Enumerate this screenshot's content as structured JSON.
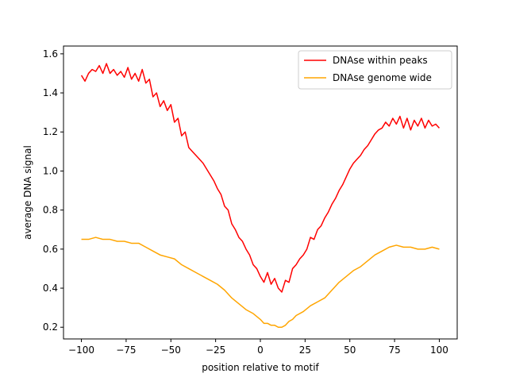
{
  "chart_data": {
    "type": "line",
    "title": "",
    "xlabel": "position relative to motif",
    "ylabel": "average DNA signal",
    "xlim": [
      -110,
      110
    ],
    "ylim": [
      0.14,
      1.64
    ],
    "xticks": [
      {
        "value": -100,
        "label": "−100"
      },
      {
        "value": -75,
        "label": "−75"
      },
      {
        "value": -50,
        "label": "−50"
      },
      {
        "value": -25,
        "label": "−25"
      },
      {
        "value": 0,
        "label": "0"
      },
      {
        "value": 25,
        "label": "25"
      },
      {
        "value": 50,
        "label": "50"
      },
      {
        "value": 75,
        "label": "75"
      },
      {
        "value": 100,
        "label": "100"
      }
    ],
    "yticks": [
      {
        "value": 0.2,
        "label": "0.2"
      },
      {
        "value": 0.4,
        "label": "0.4"
      },
      {
        "value": 0.6,
        "label": "0.6"
      },
      {
        "value": 0.8,
        "label": "0.8"
      },
      {
        "value": 1.0,
        "label": "1.0"
      },
      {
        "value": 1.2,
        "label": "1.2"
      },
      {
        "value": 1.4,
        "label": "1.4"
      },
      {
        "value": 1.6,
        "label": "1.6"
      }
    ],
    "grid": false,
    "legend_position": "top-right",
    "series": [
      {
        "name": "DNAse within peaks",
        "color": "#ff0000",
        "points": [
          [
            -100,
            1.49
          ],
          [
            -98,
            1.46
          ],
          [
            -96,
            1.5
          ],
          [
            -94,
            1.52
          ],
          [
            -92,
            1.51
          ],
          [
            -90,
            1.54
          ],
          [
            -88,
            1.5
          ],
          [
            -86,
            1.55
          ],
          [
            -84,
            1.5
          ],
          [
            -82,
            1.52
          ],
          [
            -80,
            1.49
          ],
          [
            -78,
            1.51
          ],
          [
            -76,
            1.48
          ],
          [
            -74,
            1.53
          ],
          [
            -72,
            1.47
          ],
          [
            -70,
            1.5
          ],
          [
            -68,
            1.46
          ],
          [
            -66,
            1.52
          ],
          [
            -64,
            1.45
          ],
          [
            -62,
            1.47
          ],
          [
            -60,
            1.38
          ],
          [
            -58,
            1.4
          ],
          [
            -56,
            1.33
          ],
          [
            -54,
            1.36
          ],
          [
            -52,
            1.31
          ],
          [
            -50,
            1.34
          ],
          [
            -48,
            1.25
          ],
          [
            -46,
            1.27
          ],
          [
            -44,
            1.18
          ],
          [
            -42,
            1.2
          ],
          [
            -40,
            1.12
          ],
          [
            -38,
            1.1
          ],
          [
            -36,
            1.08
          ],
          [
            -34,
            1.06
          ],
          [
            -32,
            1.04
          ],
          [
            -30,
            1.01
          ],
          [
            -28,
            0.98
          ],
          [
            -26,
            0.95
          ],
          [
            -24,
            0.91
          ],
          [
            -22,
            0.88
          ],
          [
            -20,
            0.82
          ],
          [
            -18,
            0.8
          ],
          [
            -16,
            0.73
          ],
          [
            -14,
            0.7
          ],
          [
            -12,
            0.66
          ],
          [
            -10,
            0.64
          ],
          [
            -8,
            0.6
          ],
          [
            -6,
            0.57
          ],
          [
            -4,
            0.52
          ],
          [
            -2,
            0.5
          ],
          [
            0,
            0.46
          ],
          [
            2,
            0.43
          ],
          [
            4,
            0.48
          ],
          [
            6,
            0.42
          ],
          [
            8,
            0.45
          ],
          [
            10,
            0.4
          ],
          [
            12,
            0.38
          ],
          [
            14,
            0.44
          ],
          [
            16,
            0.43
          ],
          [
            18,
            0.5
          ],
          [
            20,
            0.52
          ],
          [
            22,
            0.55
          ],
          [
            24,
            0.57
          ],
          [
            26,
            0.6
          ],
          [
            28,
            0.66
          ],
          [
            30,
            0.65
          ],
          [
            32,
            0.7
          ],
          [
            34,
            0.72
          ],
          [
            36,
            0.76
          ],
          [
            38,
            0.79
          ],
          [
            40,
            0.83
          ],
          [
            42,
            0.86
          ],
          [
            44,
            0.9
          ],
          [
            46,
            0.93
          ],
          [
            48,
            0.97
          ],
          [
            50,
            1.01
          ],
          [
            52,
            1.04
          ],
          [
            54,
            1.06
          ],
          [
            56,
            1.08
          ],
          [
            58,
            1.11
          ],
          [
            60,
            1.13
          ],
          [
            62,
            1.16
          ],
          [
            64,
            1.19
          ],
          [
            66,
            1.21
          ],
          [
            68,
            1.22
          ],
          [
            70,
            1.25
          ],
          [
            72,
            1.23
          ],
          [
            74,
            1.27
          ],
          [
            76,
            1.24
          ],
          [
            78,
            1.28
          ],
          [
            80,
            1.22
          ],
          [
            82,
            1.27
          ],
          [
            84,
            1.21
          ],
          [
            86,
            1.26
          ],
          [
            88,
            1.23
          ],
          [
            90,
            1.27
          ],
          [
            92,
            1.22
          ],
          [
            94,
            1.26
          ],
          [
            96,
            1.23
          ],
          [
            98,
            1.24
          ],
          [
            100,
            1.22
          ]
        ]
      },
      {
        "name": "DNAse genome wide",
        "color": "#ffa500",
        "points": [
          [
            -100,
            0.65
          ],
          [
            -96,
            0.65
          ],
          [
            -92,
            0.66
          ],
          [
            -88,
            0.65
          ],
          [
            -84,
            0.65
          ],
          [
            -80,
            0.64
          ],
          [
            -76,
            0.64
          ],
          [
            -72,
            0.63
          ],
          [
            -68,
            0.63
          ],
          [
            -64,
            0.61
          ],
          [
            -60,
            0.59
          ],
          [
            -56,
            0.57
          ],
          [
            -52,
            0.56
          ],
          [
            -48,
            0.55
          ],
          [
            -44,
            0.52
          ],
          [
            -40,
            0.5
          ],
          [
            -36,
            0.48
          ],
          [
            -32,
            0.46
          ],
          [
            -28,
            0.44
          ],
          [
            -24,
            0.42
          ],
          [
            -20,
            0.39
          ],
          [
            -16,
            0.35
          ],
          [
            -12,
            0.32
          ],
          [
            -8,
            0.29
          ],
          [
            -4,
            0.27
          ],
          [
            0,
            0.24
          ],
          [
            2,
            0.22
          ],
          [
            4,
            0.22
          ],
          [
            6,
            0.21
          ],
          [
            8,
            0.21
          ],
          [
            10,
            0.2
          ],
          [
            12,
            0.2
          ],
          [
            14,
            0.21
          ],
          [
            16,
            0.23
          ],
          [
            18,
            0.24
          ],
          [
            20,
            0.26
          ],
          [
            24,
            0.28
          ],
          [
            28,
            0.31
          ],
          [
            32,
            0.33
          ],
          [
            36,
            0.35
          ],
          [
            40,
            0.39
          ],
          [
            44,
            0.43
          ],
          [
            48,
            0.46
          ],
          [
            52,
            0.49
          ],
          [
            56,
            0.51
          ],
          [
            60,
            0.54
          ],
          [
            64,
            0.57
          ],
          [
            68,
            0.59
          ],
          [
            72,
            0.61
          ],
          [
            76,
            0.62
          ],
          [
            80,
            0.61
          ],
          [
            84,
            0.61
          ],
          [
            88,
            0.6
          ],
          [
            92,
            0.6
          ],
          [
            96,
            0.61
          ],
          [
            100,
            0.6
          ]
        ]
      }
    ]
  }
}
